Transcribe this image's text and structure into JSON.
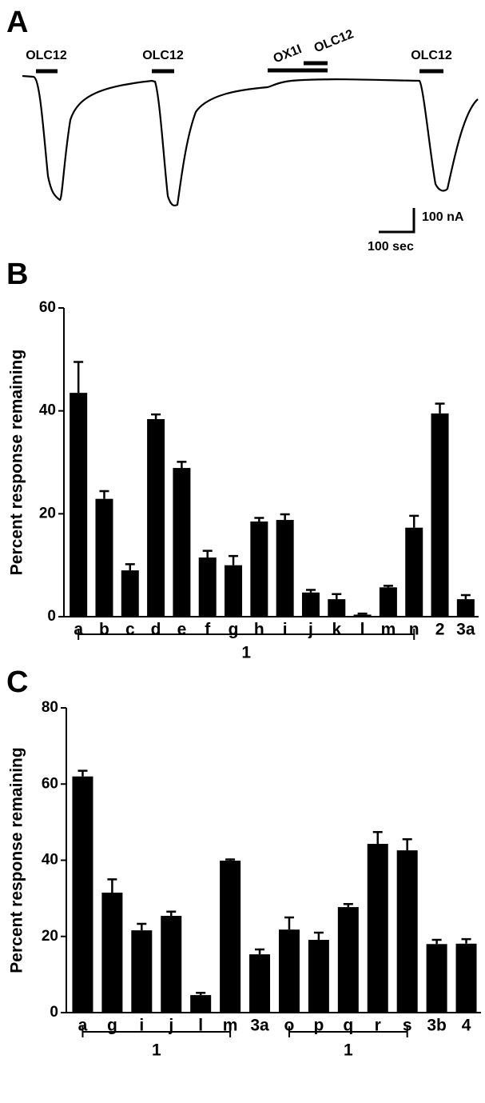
{
  "panel_a": {
    "label": "A",
    "stimuli": [
      "OLC12",
      "OLC12",
      "OX1I",
      "OLC12",
      "OLC12"
    ],
    "scale_y": "100 nA",
    "scale_x": "100 sec"
  },
  "chart_data": [
    {
      "type": "bar",
      "panel_label": "B",
      "y_label": "Percent response remaining",
      "categories": [
        "a",
        "b",
        "c",
        "d",
        "e",
        "f",
        "g",
        "h",
        "i",
        "j",
        "k",
        "l",
        "m",
        "n",
        "2",
        "3a"
      ],
      "values": [
        43.5,
        22.9,
        9.0,
        38.4,
        28.9,
        11.5,
        10.0,
        18.5,
        18.8,
        4.7,
        3.4,
        0.4,
        5.7,
        17.3,
        39.5,
        3.4
      ],
      "errors": [
        6.0,
        1.5,
        1.2,
        0.9,
        1.2,
        1.3,
        1.8,
        0.7,
        1.1,
        0.5,
        1.0,
        0.2,
        0.3,
        2.3,
        1.9,
        0.8
      ],
      "color": "#000000",
      "ylim": [
        0,
        60
      ],
      "yticks": [
        0,
        20,
        40,
        60
      ],
      "groups": [
        {
          "label": "1",
          "start": "a",
          "end": "n"
        }
      ]
    },
    {
      "type": "bar",
      "panel_label": "C",
      "y_label": "Percent response remaining",
      "categories": [
        "a",
        "g",
        "i",
        "j",
        "l",
        "m",
        "3a",
        "o",
        "p",
        "q",
        "r",
        "s",
        "3b",
        "4"
      ],
      "values": [
        62.0,
        31.5,
        21.6,
        25.4,
        4.6,
        39.9,
        15.3,
        21.8,
        19.1,
        27.7,
        44.3,
        42.6,
        18.0,
        18.1
      ],
      "errors": [
        1.5,
        3.5,
        1.7,
        1.1,
        0.6,
        0.3,
        1.3,
        3.2,
        1.9,
        0.8,
        3.1,
        2.9,
        1.1,
        1.2
      ],
      "color": "#000000",
      "ylim": [
        0,
        80
      ],
      "yticks": [
        0,
        20,
        40,
        60,
        80
      ],
      "groups": [
        {
          "label": "1",
          "start": "a",
          "end": "m"
        },
        {
          "label": "1",
          "start": "o",
          "end": "s"
        }
      ]
    }
  ]
}
